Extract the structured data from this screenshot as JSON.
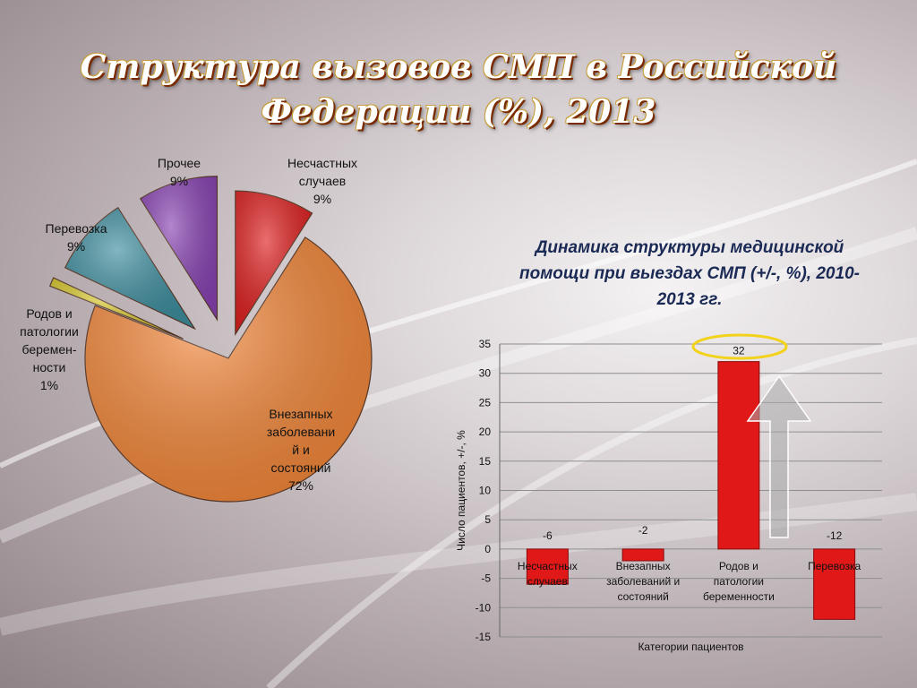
{
  "title_line1": "Структура вызовов СМП в Российской",
  "title_line2": "Федерации (%), 2013",
  "chart_data": [
    {
      "type": "pie",
      "title": "Структура вызовов СМП в Российской Федерации (%), 2013",
      "slices": [
        {
          "label_lines": [
            "Несчастных",
            "случаев",
            "9%"
          ],
          "value": 9,
          "color": "#e02020"
        },
        {
          "label_lines": [
            "Внезапных",
            "заболевани",
            "й  и",
            "состояний",
            "72%"
          ],
          "value": 72,
          "color": "#f5883a"
        },
        {
          "label_lines": [
            "Родов и",
            "патологии",
            "беремен-",
            "ности",
            "1%"
          ],
          "value": 1,
          "color": "#d8c82a"
        },
        {
          "label_lines": [
            "Перевозка",
            "9%"
          ],
          "value": 9,
          "color": "#3f8fa0"
        },
        {
          "label_lines": [
            "Прочее",
            "9%"
          ],
          "value": 9,
          "color": "#8a44b4"
        }
      ]
    },
    {
      "type": "bar",
      "title": "Динамика структуры медицинской помощи при выездах СМП (+/-, %), 2010-2013 гг.",
      "xlabel": "Категории пациентов",
      "ylabel": "Число пациентов, +/-, %",
      "ylim": [
        -15,
        35
      ],
      "yticks": [
        35,
        30,
        25,
        20,
        15,
        10,
        5,
        0,
        -5,
        -10,
        -15
      ],
      "grid": true,
      "categories": [
        [
          "Несчастных",
          "случаев"
        ],
        [
          "Внезапных",
          "заболеваний  и",
          "состояний"
        ],
        [
          "Родов и",
          "патологии",
          "беременности"
        ],
        [
          "Перевозка"
        ]
      ],
      "values": [
        -6,
        -2,
        32,
        -12
      ],
      "data_labels": [
        "-6",
        "-2",
        "32",
        "-12"
      ],
      "bar_color": "#e01818"
    }
  ],
  "subtitle_lines": [
    "Динамика структуры медицинской",
    "помощи при выездах СМП (+/-, %), 2010-",
    "2013 гг."
  ]
}
